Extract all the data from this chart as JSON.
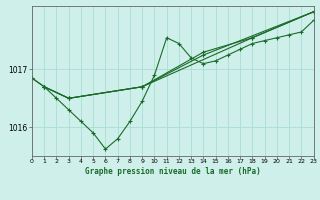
{
  "background_color": "#cff0ea",
  "grid_color": "#a8ddd4",
  "line_color": "#1a6b2a",
  "title": "Graphe pression niveau de la mer (hPa)",
  "xlim": [
    0,
    23
  ],
  "ylim": [
    1015.5,
    1018.1
  ],
  "yticks": [
    1016,
    1017
  ],
  "xticks": [
    0,
    1,
    2,
    3,
    4,
    5,
    6,
    7,
    8,
    9,
    10,
    11,
    12,
    13,
    14,
    15,
    16,
    17,
    18,
    19,
    20,
    21,
    22,
    23
  ],
  "series": [
    {
      "x": [
        0,
        1,
        2,
        3,
        4,
        5,
        6,
        7,
        8,
        9,
        10,
        11,
        12,
        13,
        14,
        15,
        16,
        17,
        18,
        19,
        20,
        21,
        22,
        23
      ],
      "y": [
        1016.85,
        1016.7,
        1016.5,
        1016.3,
        1016.1,
        1015.9,
        1015.62,
        1015.8,
        1016.1,
        1016.45,
        1016.9,
        1017.55,
        1017.45,
        1017.2,
        1017.1,
        1017.15,
        1017.25,
        1017.35,
        1017.45,
        1017.5,
        1017.55,
        1017.6,
        1017.65,
        1017.85
      ]
    },
    {
      "x": [
        0,
        1,
        3,
        9,
        14,
        18,
        23
      ],
      "y": [
        1016.85,
        1016.7,
        1016.5,
        1016.7,
        1017.3,
        1017.55,
        1018.0
      ]
    },
    {
      "x": [
        1,
        3,
        9,
        14,
        23
      ],
      "y": [
        1016.7,
        1016.5,
        1016.7,
        1017.25,
        1018.0
      ]
    },
    {
      "x": [
        1,
        3,
        9,
        18,
        23
      ],
      "y": [
        1016.7,
        1016.5,
        1016.7,
        1017.55,
        1018.0
      ]
    }
  ]
}
